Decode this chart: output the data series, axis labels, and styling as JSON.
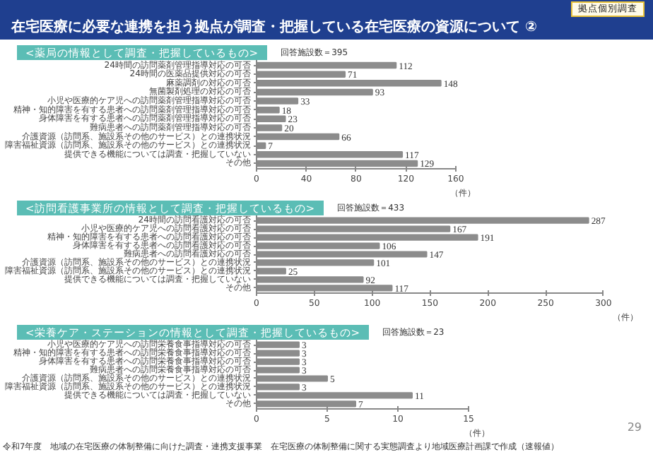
{
  "chart_data": [
    {
      "type": "bar",
      "orientation": "horizontal",
      "title": "<薬局の情報として調査・把握しているもの>",
      "subtitle": "回答施設数＝395",
      "xlabel": "（件）",
      "annotations": [
        "在宅医療に必要な連携を担う拠点が調査・把握している在宅医療の資源について ②",
        "拠点個別調査"
      ],
      "categories": [
        "24時間の訪問薬剤管理指導対応の可否",
        "24時間の医薬品提供対応の可否",
        "麻薬調剤の対応の可否",
        "無菌製剤処理の対応の可否",
        "小児や医療的ケア児への訪問薬剤管理指導対応の可否",
        "精神・知的障害を有する患者への訪問薬剤管理指導対応の可否",
        "身体障害を有する患者への訪問薬剤管理指導対応の可否",
        "難病患者への訪問薬剤管理指導対応の可否",
        "介護資源（訪問系、施設系その他のサービス）との連携状況",
        "障害福祉資源（訪問系、施設系その他のサービス）との連携状況",
        "提供できる機能については調査・把握していない",
        "その他"
      ],
      "values": [
        112,
        71,
        148,
        93,
        33,
        18,
        23,
        20,
        66,
        7,
        117,
        129
      ],
      "color": "#8c8c8c",
      "data_labels": true,
      "xlim": [
        0,
        160
      ],
      "xticks": [
        0,
        40,
        80,
        120,
        160
      ]
    },
    {
      "type": "bar",
      "orientation": "horizontal",
      "title": "<訪問看護事業所の情報として調査・把握しているもの>",
      "subtitle": "回答施設数＝433",
      "xlabel": "（件）",
      "categories": [
        "24時間の訪問看護対応の可否",
        "小児や医療的ケア児への訪問看護対応の可否",
        "精神・知的障害を有する患者への訪問看護対応の可否",
        "身体障害を有する患者への訪問看護対応の可否",
        "難病患者への訪問看護対応の可否",
        "介護資源（訪問系、施設系その他のサービス）との連携状況",
        "障害福祉資源（訪問系、施設系その他のサービス）との連携状況",
        "提供できる機能については調査・把握していない",
        "その他"
      ],
      "values": [
        287,
        167,
        191,
        106,
        147,
        101,
        25,
        92,
        117
      ],
      "color": "#8c8c8c",
      "data_labels": true,
      "xlim": [
        0,
        300
      ],
      "xticks": [
        0,
        50,
        100,
        150,
        200,
        250,
        300
      ]
    },
    {
      "type": "bar",
      "orientation": "horizontal",
      "title": "<栄養ケア・ステーションの情報として調査・把握しているもの>",
      "subtitle": "回答施設数＝23",
      "xlabel": "（件）",
      "annotations": [
        "令和7年度　地域の在宅医療の体制整備に向けた調査・連携支援事業　在宅医療の体制整備に関する実態調査より地域医療計画課で作成（速報値）",
        "29"
      ],
      "categories": [
        "小児や医療的ケア児への訪問栄養食事指導対応の可否",
        "精神・知的障害を有する患者への訪問栄養食事指導対応の可否",
        "身体障害を有する患者への訪問栄養食事指導対応の可否",
        "難病患者への訪問栄養食事指導対応の可否",
        "介護資源（訪問系、施設系その他のサービス）との連携状況",
        "障害福祉資源（訪問系、施設系その他のサービス）との連携状況",
        "提供できる機能については調査・把握していない",
        "その他"
      ],
      "values": [
        3,
        3,
        3,
        3,
        5,
        3,
        11,
        7
      ],
      "color": "#8c8c8c",
      "data_labels": true,
      "xlim": [
        0,
        15
      ],
      "xticks": [
        0,
        5,
        10,
        15
      ]
    }
  ]
}
